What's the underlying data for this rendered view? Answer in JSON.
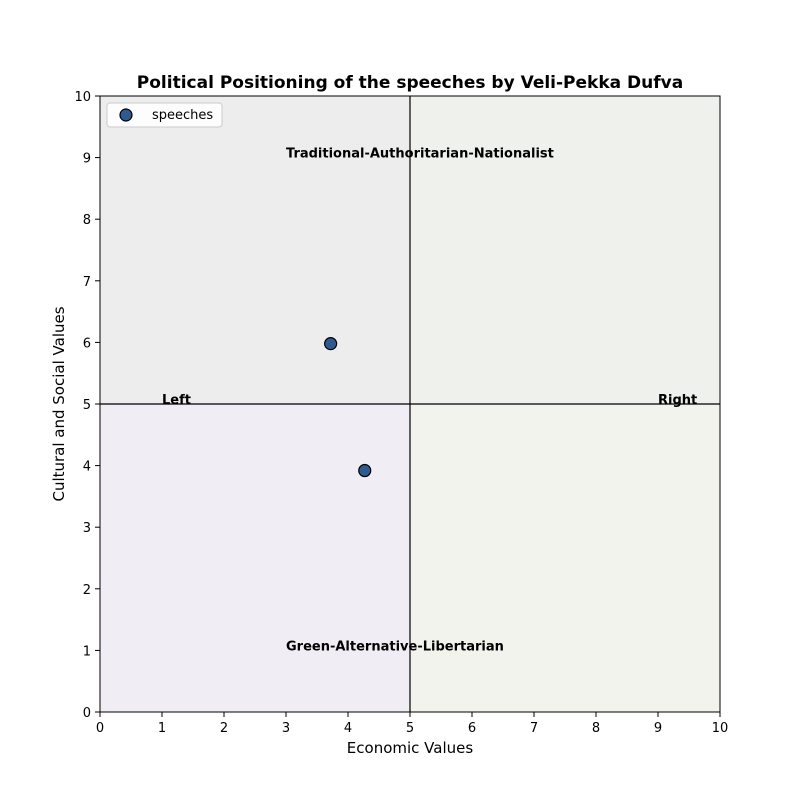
{
  "chart_data": {
    "type": "scatter",
    "title": "Political Positioning of the speeches by Veli-Pekka Dufva",
    "xlabel": "Economic Values",
    "ylabel": "Cultural and Social Values",
    "xlim": [
      0,
      10
    ],
    "ylim": [
      0,
      10
    ],
    "xticks": [
      "0",
      "1",
      "2",
      "3",
      "4",
      "5",
      "6",
      "7",
      "8",
      "9",
      "10"
    ],
    "yticks": [
      "0",
      "1",
      "2",
      "3",
      "4",
      "5",
      "6",
      "7",
      "8",
      "9",
      "10"
    ],
    "grid": false,
    "legend": {
      "placement": "top-left",
      "entries": [
        "speeches"
      ]
    },
    "series": [
      {
        "name": "speeches",
        "color": "#2f5a8f",
        "points": [
          {
            "x": 3.72,
            "y": 5.98
          },
          {
            "x": 4.27,
            "y": 3.92
          }
        ]
      }
    ],
    "quadrants": [
      {
        "x": [
          0,
          5
        ],
        "y": [
          5,
          10
        ],
        "color": "#ededed"
      },
      {
        "x": [
          5,
          10
        ],
        "y": [
          5,
          10
        ],
        "color": "#eff1ec"
      },
      {
        "x": [
          0,
          5
        ],
        "y": [
          0,
          5
        ],
        "color": "#f0edf4"
      },
      {
        "x": [
          5,
          10
        ],
        "y": [
          0,
          5
        ],
        "color": "#f2f3ed"
      }
    ],
    "divider_lines": {
      "x": 5,
      "y": 5
    },
    "annotations": [
      {
        "text": "Traditional-Authoritarian-Nationalist",
        "x": 3,
        "y": 9,
        "anchor": "start"
      },
      {
        "text": "Green-Alternative-Libertarian",
        "x": 3,
        "y": 1,
        "anchor": "start"
      },
      {
        "text": "Left",
        "x": 1,
        "y": 5,
        "anchor": "start"
      },
      {
        "text": "Right",
        "x": 9,
        "y": 5,
        "anchor": "start"
      }
    ]
  }
}
